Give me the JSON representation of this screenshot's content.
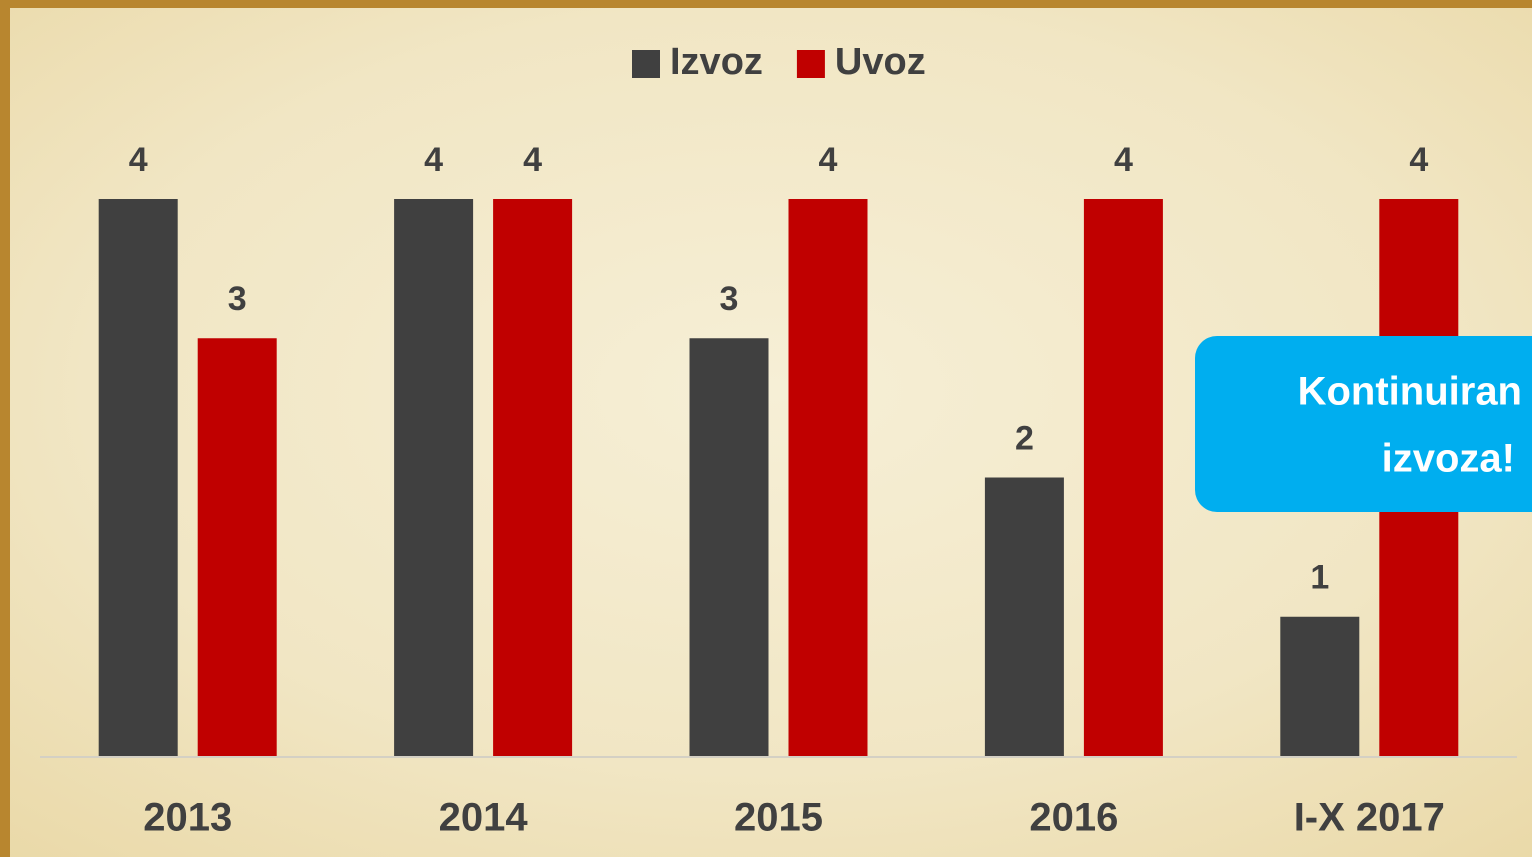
{
  "chart_data": {
    "type": "bar",
    "categories": [
      "2013",
      "2014",
      "2015",
      "2016",
      "I-X 2017"
    ],
    "series": [
      {
        "name": "Izvoz",
        "color": "#404040",
        "values": [
          4,
          4,
          3,
          2,
          1
        ]
      },
      {
        "name": "Uvoz",
        "color": "#c00000",
        "values": [
          3,
          4,
          4,
          4,
          4
        ]
      }
    ],
    "ylim": [
      0,
      4
    ],
    "legend": "top",
    "annotations": [
      "Kontinuiran",
      "izvoza!"
    ]
  }
}
